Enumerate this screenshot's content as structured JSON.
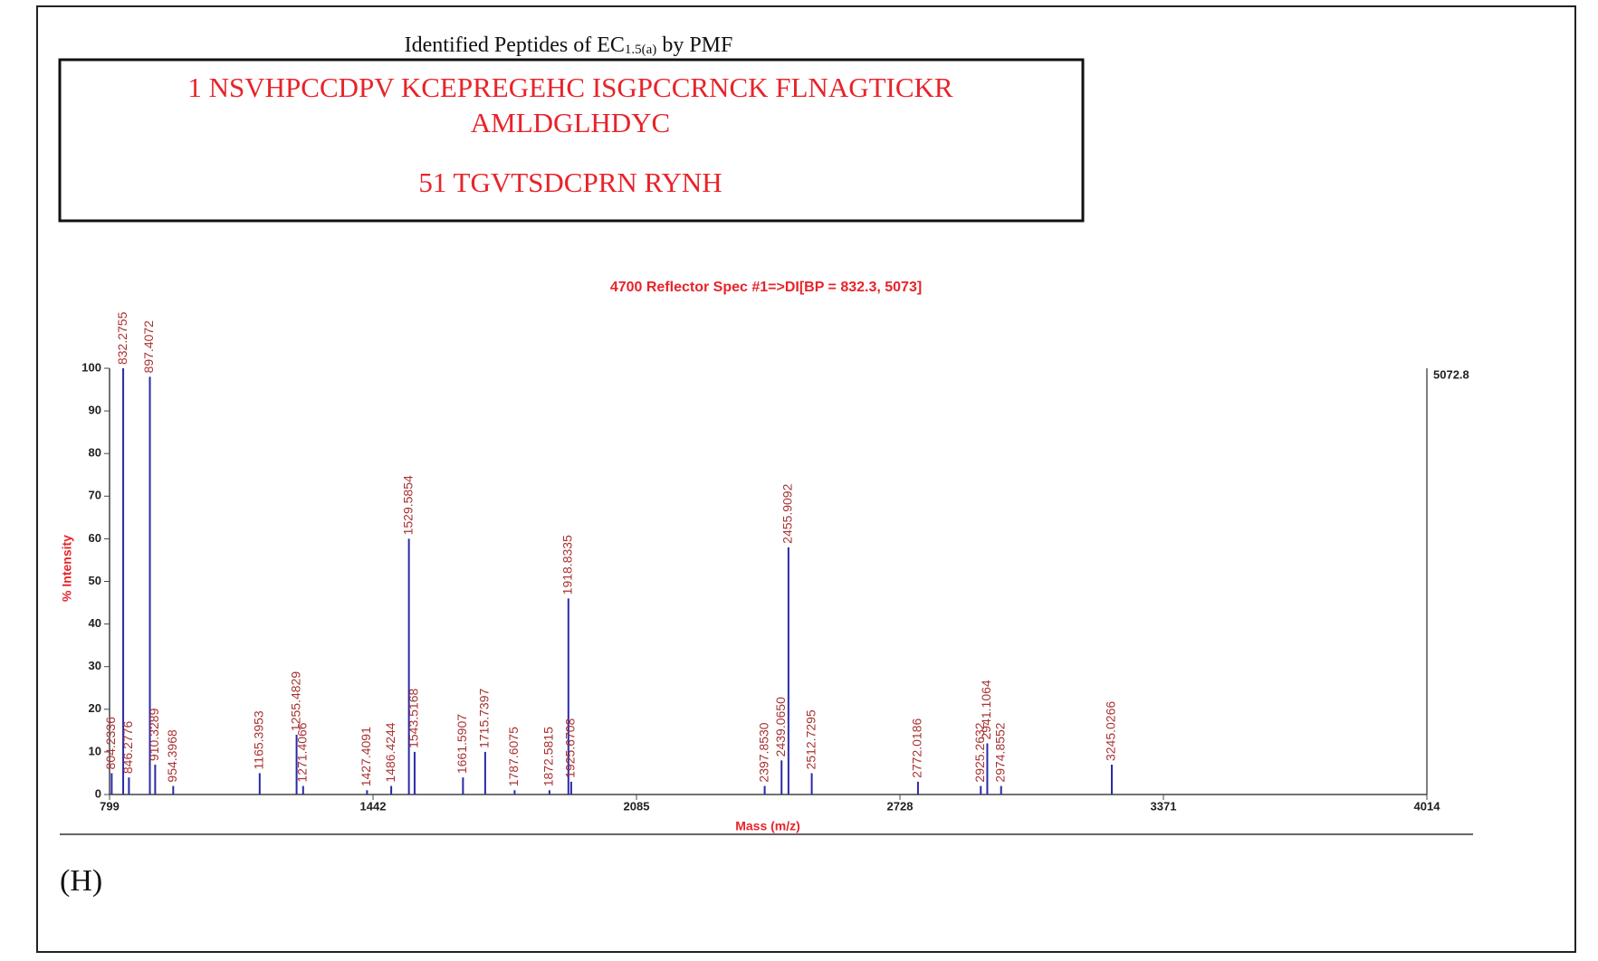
{
  "header": {
    "title": "Identified Peptides of EC",
    "title_subscript": "1.5(a)",
    "title_suffix": " by PMF",
    "sequence": [
      "1 NSVHPCCDPV KCEPREGEHC ISGPCCRNCK FLNAGTICKR",
      "AMLDGLHDYC",
      "51 TGVTSDCPRN RYNH"
    ]
  },
  "panel_label": "(H)",
  "chart_data": {
    "type": "bar",
    "title": "4700 Reflector Spec #1=>DI[BP = 832.3, 5073]",
    "xlabel": "Mass (m/z)",
    "ylabel": "% Intensity",
    "annotation": "5072.8",
    "x": [
      804.2336,
      832.2755,
      846.2776,
      897.4072,
      910.3289,
      954.3968,
      1165.3953,
      1255.4829,
      1271.4066,
      1427.4091,
      1486.4244,
      1529.5854,
      1543.5168,
      1661.5907,
      1715.7397,
      1787.6075,
      1872.5815,
      1918.8335,
      1925.6708,
      2397.853,
      2439.065,
      2455.9092,
      2512.7295,
      2772.0186,
      2925.2632,
      2941.1064,
      2974.8552,
      3245.0266
    ],
    "x_labels": [
      "804.2336",
      "832.2755",
      "846.2776",
      "897.4072",
      "910.3289",
      "954.3968",
      "1165.3953",
      "1255.4829",
      "1271.4066",
      "1427.4091",
      "1486.4244",
      "1529.5854",
      "1543.5168",
      "1661.5907",
      "1715.7397",
      "1787.6075",
      "1872.5815",
      "1918.8335",
      "1925.6708",
      "2397.8530",
      "2439.0650",
      "2455.9092",
      "2512.7295",
      "2772.0186",
      "2925.2632",
      "2941.1064",
      "2974.8552",
      "3245.0266"
    ],
    "values": [
      5,
      100,
      4,
      98,
      7,
      2,
      5,
      14,
      2,
      1,
      2,
      60,
      10,
      4,
      10,
      1,
      1,
      46,
      3,
      2,
      8,
      58,
      5,
      3,
      2,
      12,
      2,
      7
    ],
    "color": "#2a2aa8",
    "label_color": "#a83232",
    "xlim": [
      799,
      4014
    ],
    "xticks": [
      799,
      1442,
      2085,
      2728,
      3371,
      4014
    ],
    "ylim": [
      0,
      100
    ],
    "yticks": [
      0,
      10,
      20,
      30,
      40,
      50,
      60,
      70,
      80,
      90,
      100
    ]
  }
}
